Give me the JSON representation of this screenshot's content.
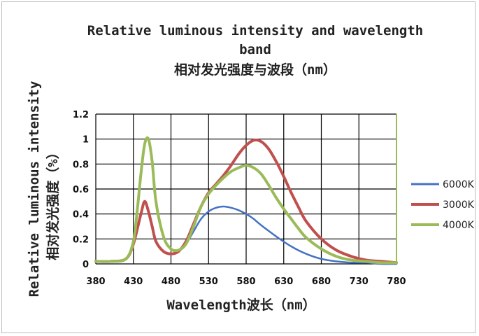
{
  "chart_data": {
    "type": "line",
    "title_en_line1": "Relative luminous intensity and wavelength",
    "title_en_line2": "band",
    "title_cn": "相对发光强度与波段（nm）",
    "xlabel": "Wavelength波长（nm）",
    "ylabel_en": "Relative luminous intensity",
    "ylabel_cn": "相对发光强度（%）",
    "xlim": [
      380,
      780
    ],
    "ylim": [
      0,
      1.2
    ],
    "x_ticks": [
      380,
      430,
      480,
      530,
      580,
      630,
      680,
      730,
      780
    ],
    "y_ticks": [
      0,
      0.2,
      0.4,
      0.6,
      0.8,
      1,
      1.2
    ],
    "grid": true,
    "legend_position": "right",
    "series": [
      {
        "name": "6000K",
        "color": "#4472c4",
        "x": [
          380,
          400,
          420,
          430,
          440,
          445,
          450,
          455,
          460,
          470,
          480,
          490,
          500,
          510,
          520,
          530,
          540,
          550,
          560,
          570,
          580,
          590,
          600,
          620,
          640,
          660,
          680,
          700,
          720,
          740,
          760,
          780
        ],
        "y": [
          0.02,
          0.02,
          0.04,
          0.16,
          0.4,
          0.5,
          0.42,
          0.3,
          0.18,
          0.1,
          0.08,
          0.1,
          0.16,
          0.26,
          0.36,
          0.42,
          0.45,
          0.46,
          0.45,
          0.43,
          0.4,
          0.36,
          0.31,
          0.22,
          0.14,
          0.08,
          0.04,
          0.02,
          0.01,
          0.01,
          0.0,
          0.0
        ]
      },
      {
        "name": "3000K",
        "color": "#c0504d",
        "x": [
          380,
          400,
          420,
          430,
          440,
          445,
          450,
          455,
          460,
          470,
          480,
          490,
          500,
          510,
          520,
          530,
          540,
          550,
          560,
          570,
          580,
          590,
          600,
          610,
          620,
          630,
          640,
          650,
          660,
          680,
          700,
          720,
          740,
          760,
          780
        ],
        "y": [
          0.02,
          0.02,
          0.04,
          0.16,
          0.4,
          0.5,
          0.42,
          0.3,
          0.18,
          0.1,
          0.08,
          0.1,
          0.18,
          0.32,
          0.46,
          0.57,
          0.64,
          0.71,
          0.79,
          0.88,
          0.95,
          0.99,
          0.98,
          0.92,
          0.82,
          0.7,
          0.57,
          0.45,
          0.34,
          0.2,
          0.11,
          0.06,
          0.03,
          0.02,
          0.01
        ]
      },
      {
        "name": "4000K",
        "color": "#9bbb59",
        "x": [
          380,
          400,
          420,
          430,
          435,
          440,
          445,
          450,
          455,
          460,
          470,
          480,
          490,
          500,
          510,
          520,
          530,
          540,
          550,
          560,
          570,
          580,
          590,
          600,
          610,
          620,
          630,
          640,
          650,
          660,
          680,
          700,
          720,
          740,
          760,
          780
        ],
        "y": [
          0.02,
          0.02,
          0.04,
          0.18,
          0.42,
          0.72,
          0.96,
          1.0,
          0.82,
          0.5,
          0.22,
          0.12,
          0.11,
          0.16,
          0.3,
          0.46,
          0.56,
          0.63,
          0.69,
          0.74,
          0.77,
          0.79,
          0.77,
          0.72,
          0.63,
          0.53,
          0.44,
          0.36,
          0.28,
          0.21,
          0.12,
          0.06,
          0.03,
          0.02,
          0.01,
          0.01
        ]
      }
    ]
  }
}
